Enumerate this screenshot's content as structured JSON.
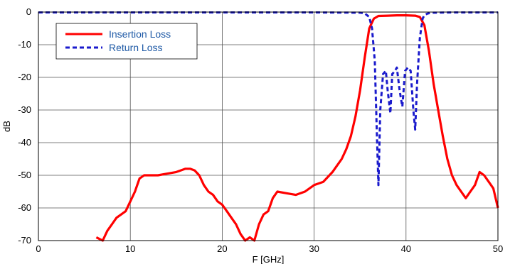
{
  "chart_data": {
    "type": "line",
    "xlabel": "F [GHz]",
    "ylabel": "dB",
    "xlim": [
      0,
      50
    ],
    "ylim": [
      -70,
      0
    ],
    "x_ticks": [
      "0",
      "10",
      "20",
      "30",
      "40",
      "50"
    ],
    "y_ticks": [
      "0",
      "-10",
      "-20",
      "-30",
      "-40",
      "-50",
      "-60",
      "-70"
    ],
    "grid": true,
    "legend_position": "top-left",
    "series": [
      {
        "name": "Insertion Loss",
        "color": "#ff0000",
        "style": "solid",
        "x": [
          6.3,
          7.0,
          7.5,
          8.0,
          8.5,
          9.0,
          9.5,
          10.0,
          10.5,
          11.0,
          11.5,
          12.0,
          13.0,
          14.0,
          15.0,
          16.0,
          16.5,
          17.0,
          17.5,
          18.0,
          18.5,
          19.0,
          19.5,
          20.0,
          20.5,
          21.0,
          21.5,
          22.0,
          22.5,
          23.0,
          23.5,
          24.0,
          24.5,
          25.0,
          25.5,
          26.0,
          27.0,
          28.0,
          29.0,
          30.0,
          31.0,
          32.0,
          32.5,
          33.0,
          33.5,
          34.0,
          34.5,
          35.0,
          35.5,
          36.0,
          36.5,
          37.0,
          38.0,
          39.0,
          40.0,
          41.0,
          41.5,
          42.0,
          42.5,
          43.0,
          43.5,
          44.0,
          44.5,
          45.0,
          45.5,
          46.0,
          46.5,
          47.0,
          47.5,
          48.0,
          48.5,
          49.0,
          49.5,
          50.0
        ],
        "y": [
          -69,
          -70,
          -67,
          -65,
          -63,
          -62,
          -61,
          -58,
          -55,
          -51,
          -50,
          -50,
          -50,
          -49.5,
          -49,
          -48,
          -48,
          -48.5,
          -50,
          -53,
          -55,
          -56,
          -58,
          -59,
          -61,
          -63,
          -65,
          -68,
          -70,
          -69,
          -70,
          -65,
          -62,
          -61,
          -57,
          -55,
          -55.5,
          -56,
          -55,
          -53,
          -52,
          -49,
          -47,
          -45,
          -42,
          -38,
          -32,
          -24,
          -14,
          -5,
          -2,
          -1.2,
          -1.1,
          -1,
          -1,
          -1.1,
          -1.5,
          -4,
          -12,
          -22,
          -30,
          -38,
          -45,
          -50,
          -53,
          -55,
          -57,
          -55,
          -53,
          -49,
          -50,
          -52,
          -54,
          -60
        ]
      },
      {
        "name": "Return Loss",
        "color": "#1a1acc",
        "style": "dashed",
        "x": [
          0,
          10,
          20,
          30,
          35.0,
          35.5,
          36.0,
          36.3,
          36.6,
          36.8,
          37.0,
          37.2,
          37.5,
          37.8,
          38.0,
          38.3,
          38.5,
          38.8,
          39.0,
          39.3,
          39.6,
          39.9,
          40.2,
          40.5,
          40.8,
          41.0,
          41.2,
          41.5,
          41.8,
          42.0,
          42.3,
          42.6,
          43.0,
          45,
          50
        ],
        "y": [
          -0.1,
          -0.1,
          -0.1,
          -0.1,
          -0.2,
          -0.4,
          -1.5,
          -5,
          -15,
          -35,
          -53,
          -30,
          -19,
          -18,
          -24,
          -31,
          -19,
          -18,
          -17,
          -24,
          -29,
          -18,
          -17,
          -18,
          -30,
          -36,
          -22,
          -8,
          -2,
          -1,
          -0.5,
          -0.3,
          -0.2,
          -0.1,
          -0.1
        ]
      }
    ]
  }
}
